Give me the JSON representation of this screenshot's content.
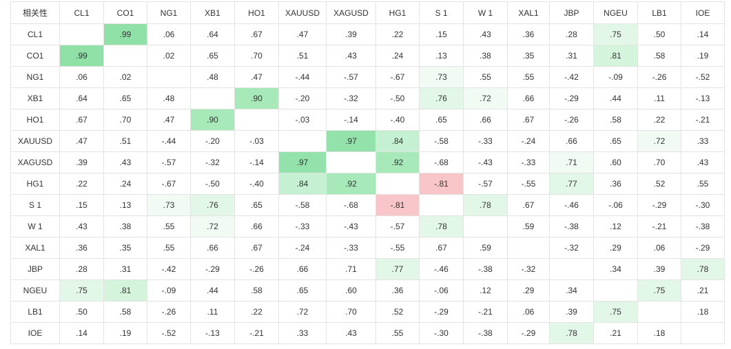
{
  "table": {
    "corner": "相关性",
    "columns": [
      "CL1",
      "CO1",
      "NG1",
      "XB1",
      "HO1",
      "XAUUSD",
      "XAGUSD",
      "HG1",
      "S 1",
      "W 1",
      "XAL1",
      "JBP",
      "NGEU",
      "LB1",
      "IOE"
    ],
    "rows": [
      {
        "label": "CL1",
        "cells": [
          null,
          ".99",
          ".06",
          ".64",
          ".67",
          ".47",
          ".39",
          ".22",
          ".15",
          ".43",
          ".36",
          ".28",
          ".75",
          ".50",
          ".14"
        ]
      },
      {
        "label": "CO1",
        "cells": [
          ".99",
          null,
          ".02",
          ".65",
          ".70",
          ".51",
          ".43",
          ".24",
          ".13",
          ".38",
          ".35",
          ".31",
          ".81",
          ".58",
          ".19"
        ]
      },
      {
        "label": "NG1",
        "cells": [
          ".06",
          ".02",
          null,
          ".48",
          ".47",
          "-.44",
          "-.57",
          "-.67",
          ".73",
          ".55",
          ".55",
          "-.42",
          "-.09",
          "-.26",
          "-.52"
        ]
      },
      {
        "label": "XB1",
        "cells": [
          ".64",
          ".65",
          ".48",
          null,
          ".90",
          "-.20",
          "-.32",
          "-.50",
          ".76",
          ".72",
          ".66",
          "-.29",
          ".44",
          ".11",
          "-.13"
        ]
      },
      {
        "label": "HO1",
        "cells": [
          ".67",
          ".70",
          ".47",
          ".90",
          null,
          "-.03",
          "-.14",
          "-.40",
          ".65",
          ".66",
          ".67",
          "-.26",
          ".58",
          ".22",
          "-.21"
        ]
      },
      {
        "label": "XAUUSD",
        "cells": [
          ".47",
          ".51",
          "-.44",
          "-.20",
          "-.03",
          null,
          ".97",
          ".84",
          "-.58",
          "-.33",
          "-.24",
          ".66",
          ".65",
          ".72",
          ".33"
        ]
      },
      {
        "label": "XAGUSD",
        "cells": [
          ".39",
          ".43",
          "-.57",
          "-.32",
          "-.14",
          ".97",
          null,
          ".92",
          "-.68",
          "-.43",
          "-.33",
          ".71",
          ".60",
          ".70",
          ".43"
        ]
      },
      {
        "label": "HG1",
        "cells": [
          ".22",
          ".24",
          "-.67",
          "-.50",
          "-.40",
          ".84",
          ".92",
          null,
          "-.81",
          "-.57",
          "-.55",
          ".77",
          ".36",
          ".52",
          ".55"
        ]
      },
      {
        "label": "S 1",
        "cells": [
          ".15",
          ".13",
          ".73",
          ".76",
          ".65",
          "-.58",
          "-.68",
          "-.81",
          null,
          ".78",
          ".67",
          "-.46",
          "-.06",
          "-.29",
          "-.30"
        ]
      },
      {
        "label": "W 1",
        "cells": [
          ".43",
          ".38",
          ".55",
          ".72",
          ".66",
          "-.33",
          "-.43",
          "-.57",
          ".78",
          null,
          ".59",
          "-.38",
          ".12",
          "-.21",
          "-.38"
        ]
      },
      {
        "label": "XAL1",
        "cells": [
          ".36",
          ".35",
          ".55",
          ".66",
          ".67",
          "-.24",
          "-.33",
          "-.55",
          ".67",
          ".59",
          null,
          "-.32",
          ".29",
          ".06",
          "-.29"
        ]
      },
      {
        "label": "JBP",
        "cells": [
          ".28",
          ".31",
          "-.42",
          "-.29",
          "-.26",
          ".66",
          ".71",
          ".77",
          "-.46",
          "-.38",
          "-.32",
          null,
          ".34",
          ".39",
          ".78"
        ]
      },
      {
        "label": "NGEU",
        "cells": [
          ".75",
          ".81",
          "-.09",
          ".44",
          ".58",
          ".65",
          ".60",
          ".36",
          "-.06",
          ".12",
          ".29",
          ".34",
          null,
          ".75",
          ".21"
        ]
      },
      {
        "label": "LB1",
        "cells": [
          ".50",
          ".58",
          "-.26",
          ".11",
          ".22",
          ".72",
          ".70",
          ".52",
          "-.29",
          "-.21",
          ".06",
          ".39",
          ".75",
          null,
          ".18"
        ]
      },
      {
        "label": "IOE",
        "cells": [
          ".14",
          ".19",
          "-.52",
          "-.13",
          "-.21",
          ".33",
          ".43",
          ".55",
          "-.30",
          "-.38",
          "-.29",
          ".78",
          ".21",
          ".18",
          null
        ]
      }
    ],
    "highlights": [
      {
        "row": 0,
        "col": 1,
        "color": "#8fe1a8"
      },
      {
        "row": 0,
        "col": 12,
        "color": "#e3f7e8"
      },
      {
        "row": 1,
        "col": 0,
        "color": "#8fe1a8"
      },
      {
        "row": 1,
        "col": 12,
        "color": "#d4f4dc"
      },
      {
        "row": 2,
        "col": 8,
        "color": "#f1fbf3"
      },
      {
        "row": 3,
        "col": 4,
        "color": "#a8e9ba"
      },
      {
        "row": 3,
        "col": 8,
        "color": "#e3f7e8"
      },
      {
        "row": 3,
        "col": 9,
        "color": "#f1fbf3"
      },
      {
        "row": 4,
        "col": 3,
        "color": "#a8e9ba"
      },
      {
        "row": 5,
        "col": 6,
        "color": "#93e2ab"
      },
      {
        "row": 5,
        "col": 7,
        "color": "#c6f0d2"
      },
      {
        "row": 5,
        "col": 13,
        "color": "#f1fbf3"
      },
      {
        "row": 6,
        "col": 5,
        "color": "#93e2ab"
      },
      {
        "row": 6,
        "col": 7,
        "color": "#a8e9ba"
      },
      {
        "row": 6,
        "col": 11,
        "color": "#f1fbf3"
      },
      {
        "row": 7,
        "col": 5,
        "color": "#c6f0d2"
      },
      {
        "row": 7,
        "col": 6,
        "color": "#a8e9ba"
      },
      {
        "row": 7,
        "col": 8,
        "color": "#f8c6c9"
      },
      {
        "row": 7,
        "col": 11,
        "color": "#e3f7e8"
      },
      {
        "row": 8,
        "col": 2,
        "color": "#f1fbf3"
      },
      {
        "row": 8,
        "col": 3,
        "color": "#e3f7e8"
      },
      {
        "row": 8,
        "col": 7,
        "color": "#f8c6c9"
      },
      {
        "row": 8,
        "col": 9,
        "color": "#e3f7e8"
      },
      {
        "row": 9,
        "col": 3,
        "color": "#f1fbf3"
      },
      {
        "row": 9,
        "col": 8,
        "color": "#e3f7e8"
      },
      {
        "row": 11,
        "col": 7,
        "color": "#e3f7e8"
      },
      {
        "row": 11,
        "col": 14,
        "color": "#e3f7e8"
      },
      {
        "row": 12,
        "col": 0,
        "color": "#e3f7e8"
      },
      {
        "row": 12,
        "col": 1,
        "color": "#d4f4dc"
      },
      {
        "row": 12,
        "col": 13,
        "color": "#e3f7e8"
      },
      {
        "row": 13,
        "col": 12,
        "color": "#e3f7e8"
      },
      {
        "row": 14,
        "col": 11,
        "color": "#e3f7e8"
      }
    ]
  }
}
